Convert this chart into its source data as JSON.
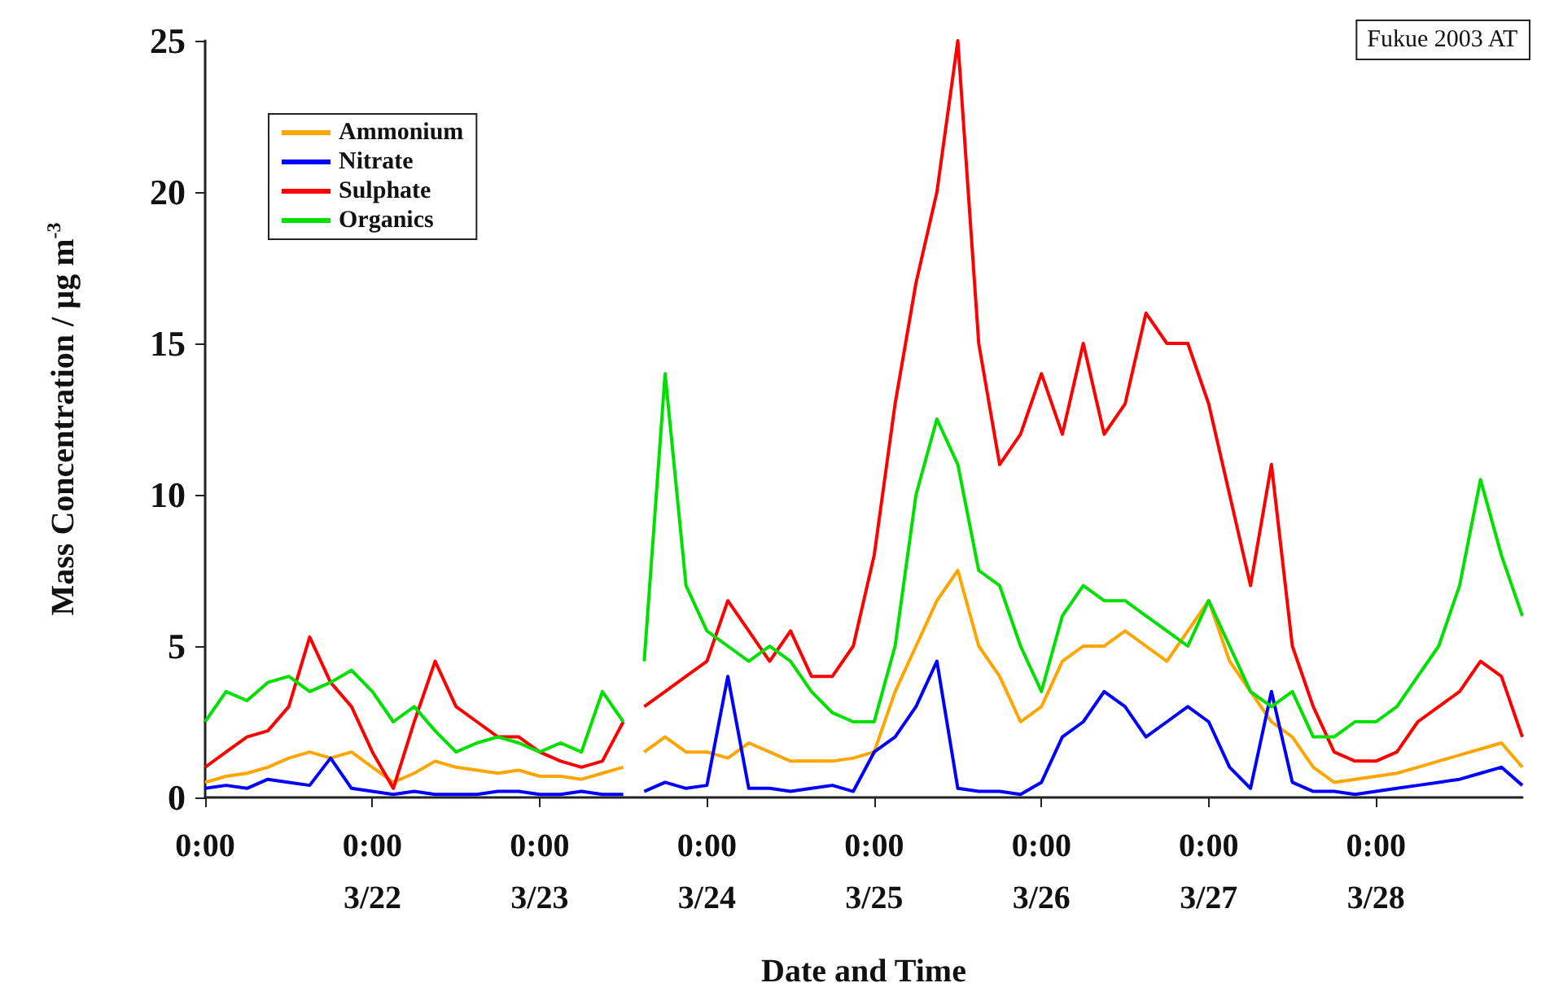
{
  "chart_data": {
    "type": "line",
    "xlabel": "Date and Time",
    "ylabel": "Mass Concentration / µg m$^{-3}$",
    "annotations": [
      "Fukue 2003 AT"
    ],
    "x": [
      "--03-21T00:00",
      "--03-21T03:00",
      "--03-21T06:00",
      "--03-21T09:00",
      "--03-21T12:00",
      "--03-21T15:00",
      "--03-21T18:00",
      "--03-21T21:00",
      "--03-22T00:00",
      "--03-22T03:00",
      "--03-22T06:00",
      "--03-22T09:00",
      "--03-22T12:00",
      "--03-22T15:00",
      "--03-22T18:00",
      "--03-22T21:00",
      "--03-23T00:00",
      "--03-23T03:00",
      "--03-23T06:00",
      "--03-23T09:00",
      "--03-23T12:00",
      "--03-23T13:30",
      "--03-23T15:00",
      "--03-23T18:00",
      "--03-23T21:00",
      "--03-24T00:00",
      "--03-24T03:00",
      "--03-24T06:00",
      "--03-24T09:00",
      "--03-24T12:00",
      "--03-24T15:00",
      "--03-24T18:00",
      "--03-24T21:00",
      "--03-25T00:00",
      "--03-25T03:00",
      "--03-25T06:00",
      "--03-25T09:00",
      "--03-25T12:00",
      "--03-25T15:00",
      "--03-25T18:00",
      "--03-25T21:00",
      "--03-26T00:00",
      "--03-26T03:00",
      "--03-26T06:00",
      "--03-26T09:00",
      "--03-26T12:00",
      "--03-26T15:00",
      "--03-26T18:00",
      "--03-26T21:00",
      "--03-27T00:00",
      "--03-27T03:00",
      "--03-27T06:00",
      "--03-27T09:00",
      "--03-27T12:00",
      "--03-27T15:00",
      "--03-27T18:00",
      "--03-27T21:00",
      "--03-28T00:00",
      "--03-28T03:00",
      "--03-28T06:00",
      "--03-28T09:00",
      "--03-28T12:00",
      "--03-28T15:00",
      "--03-28T18:00",
      "--03-28T21:00"
    ],
    "xlim": [
      "--03-21T00:00",
      "--03-28T21:00"
    ],
    "xticks": [
      {
        "value": "--03-21T00:00",
        "label": "0:00"
      },
      {
        "value": "--03-22T00:00",
        "label": "0:00\n3/22"
      },
      {
        "value": "--03-23T00:00",
        "label": "0:00\n3/23"
      },
      {
        "value": "--03-24T00:00",
        "label": "0:00\n3/24"
      },
      {
        "value": "--03-25T00:00",
        "label": "0:00\n3/25"
      },
      {
        "value": "--03-26T00:00",
        "label": "0:00\n3/26"
      },
      {
        "value": "--03-27T00:00",
        "label": "0:00\n3/27"
      },
      {
        "value": "--03-28T00:00",
        "label": "0:00\n3/28"
      }
    ],
    "ylim": [
      0,
      25
    ],
    "yticks": [
      0,
      5,
      10,
      15,
      20,
      25
    ],
    "grid": false,
    "legend": "top left",
    "marker": "none",
    "line_style": "solid",
    "series": [
      {
        "name": "Ammonium",
        "color": "#ffa500",
        "values": [
          0.5,
          0.7,
          0.8,
          1.0,
          1.3,
          1.5,
          1.3,
          1.5,
          1.0,
          0.5,
          0.8,
          1.2,
          1.0,
          0.9,
          0.8,
          0.9,
          0.7,
          0.7,
          0.6,
          0.8,
          1.0,
          null,
          1.5,
          2.0,
          1.5,
          1.5,
          1.3,
          1.8,
          1.5,
          1.2,
          1.2,
          1.2,
          1.3,
          1.5,
          3.5,
          5,
          6.5,
          7.5,
          5,
          4,
          2.5,
          3,
          4.5,
          5,
          5,
          5.5,
          5,
          4.5,
          5.5,
          6.5,
          4.5,
          3.5,
          2.5,
          2,
          1,
          0.5,
          0.6,
          0.7,
          0.8,
          1,
          1.2,
          1.4,
          1.6,
          1.8,
          1.0
        ]
      },
      {
        "name": "Nitrate",
        "color": "#0000ff",
        "values": [
          0.3,
          0.4,
          0.3,
          0.6,
          0.5,
          0.4,
          1.3,
          0.3,
          0.2,
          0.1,
          0.2,
          0.1,
          0.1,
          0.1,
          0.2,
          0.2,
          0.1,
          0.1,
          0.2,
          0.1,
          0.1,
          null,
          0.2,
          0.5,
          0.3,
          0.4,
          4.0,
          0.3,
          0.3,
          0.2,
          0.3,
          0.4,
          0.2,
          1.5,
          2,
          3,
          4.5,
          0.3,
          0.2,
          0.2,
          0.1,
          0.5,
          2,
          2.5,
          3.5,
          3,
          2,
          2.5,
          3,
          2.5,
          1.0,
          0.3,
          3.5,
          0.5,
          0.2,
          0.2,
          0.1,
          0.2,
          0.3,
          0.4,
          0.5,
          0.6,
          0.8,
          1.0,
          0.4
        ]
      },
      {
        "name": "Sulphate",
        "color": "#ff0000",
        "values": [
          1.0,
          1.5,
          2.0,
          2.2,
          3.0,
          5.3,
          3.8,
          3.0,
          1.5,
          0.3,
          2.5,
          4.5,
          3.0,
          2.5,
          2.0,
          2.0,
          1.5,
          1.2,
          1.0,
          1.2,
          2.5,
          null,
          3.0,
          3.5,
          4,
          4.5,
          6.5,
          5.5,
          4.5,
          5.5,
          4,
          4,
          5,
          8,
          13,
          17,
          20,
          25,
          15,
          11,
          12,
          14,
          12,
          15,
          12,
          13,
          16,
          15,
          15,
          13,
          10,
          7,
          11,
          5,
          3,
          1.5,
          1.2,
          1.2,
          1.5,
          2.5,
          3,
          3.5,
          4.5,
          4,
          2
        ]
      },
      {
        "name": "Organics",
        "color": "#00e000",
        "values": [
          2.5,
          3.5,
          3.2,
          3.8,
          4.0,
          3.5,
          3.8,
          4.2,
          3.5,
          2.5,
          3.0,
          2.2,
          1.5,
          1.8,
          2.0,
          1.8,
          1.5,
          1.8,
          1.5,
          3.5,
          2.5,
          null,
          4.5,
          14,
          7,
          5.5,
          5.0,
          4.5,
          5,
          4.5,
          3.5,
          2.8,
          2.5,
          2.5,
          5,
          10,
          12.5,
          11,
          7.5,
          7,
          5,
          3.5,
          6,
          7,
          6.5,
          6.5,
          6,
          5.5,
          5,
          6.5,
          5,
          3.5,
          3,
          3.5,
          2,
          2,
          2.5,
          2.5,
          3,
          4,
          5,
          7,
          10.5,
          8,
          6
        ]
      }
    ]
  }
}
